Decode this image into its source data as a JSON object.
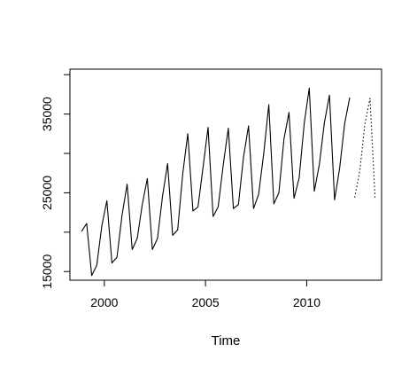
{
  "chart_data": {
    "type": "line",
    "title": "",
    "xlabel": "Time",
    "ylabel": "",
    "xlim": [
      1998.3,
      2013.7
    ],
    "ylim": [
      13900,
      40700
    ],
    "x_ticks": [
      2000,
      2005,
      2010
    ],
    "y_ticks": [
      15000,
      25000,
      35000
    ],
    "y_minor_ticks": [
      20000,
      30000,
      40000
    ],
    "grid": false,
    "legend": "none",
    "series": [
      {
        "style": "solid",
        "color": "#000000",
        "x": [
          1998.875,
          1999.125,
          1999.375,
          1999.625,
          1999.875,
          2000.125,
          2000.375,
          2000.625,
          2000.875,
          2001.125,
          2001.375,
          2001.625,
          2001.875,
          2002.125,
          2002.375,
          2002.625,
          2002.875,
          2003.125,
          2003.375,
          2003.625,
          2003.875,
          2004.125,
          2004.375,
          2004.625,
          2004.875,
          2005.125,
          2005.375,
          2005.625,
          2005.875,
          2006.125,
          2006.375,
          2006.625,
          2006.875,
          2007.125,
          2007.375,
          2007.625,
          2007.875,
          2008.125,
          2008.375,
          2008.625,
          2008.875,
          2009.125,
          2009.375,
          2009.625,
          2009.875,
          2010.125,
          2010.375,
          2010.625,
          2010.875,
          2011.125,
          2011.375,
          2011.625,
          2011.875,
          2012.125
        ],
        "values": [
          20100,
          21100,
          14500,
          15800,
          20800,
          24000,
          16100,
          16800,
          22200,
          26100,
          17800,
          19200,
          23500,
          26800,
          17800,
          19200,
          24600,
          28700,
          19600,
          20300,
          27400,
          32500,
          22700,
          23200,
          28200,
          33300,
          22000,
          23200,
          28500,
          33200,
          23000,
          23500,
          29500,
          33500,
          23000,
          24800,
          30000,
          36200,
          23600,
          25000,
          31800,
          35200,
          24300,
          26900,
          33800,
          38300,
          25200,
          28600,
          33900,
          37400,
          24100,
          28100,
          33800,
          37100
        ]
      },
      {
        "style": "dotted",
        "color": "#000000",
        "x": [
          2012.375,
          2012.625,
          2012.875,
          2013.125,
          2013.375
        ],
        "values": [
          24400,
          27800,
          33700,
          37000,
          24400
        ]
      }
    ]
  }
}
